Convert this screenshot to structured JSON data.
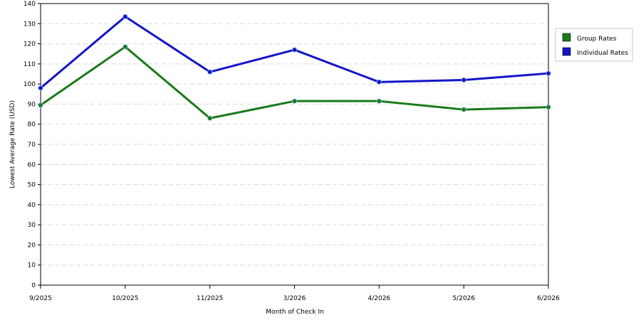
{
  "chart_data": {
    "type": "line",
    "title": "",
    "xlabel": "Month of Check In",
    "ylabel": "Lowest Average Rate (USD)",
    "categories": [
      "9/2025",
      "10/2025",
      "11/2025",
      "3/2026",
      "4/2026",
      "5/2026",
      "6/2026"
    ],
    "ylim": [
      0,
      140
    ],
    "yticks": [
      0,
      10,
      20,
      30,
      40,
      50,
      60,
      70,
      80,
      90,
      100,
      110,
      120,
      130,
      140
    ],
    "grid": true,
    "legend_position": "right",
    "series": [
      {
        "name": "Group Rates",
        "color": "#1a7a1a",
        "values": [
          89.5,
          118.5,
          83,
          91.5,
          91.5,
          87.3,
          88.5
        ]
      },
      {
        "name": "Individual Rates",
        "color": "#1414c8",
        "values": [
          98,
          133.5,
          106,
          117,
          101,
          102,
          105.3
        ]
      }
    ]
  }
}
